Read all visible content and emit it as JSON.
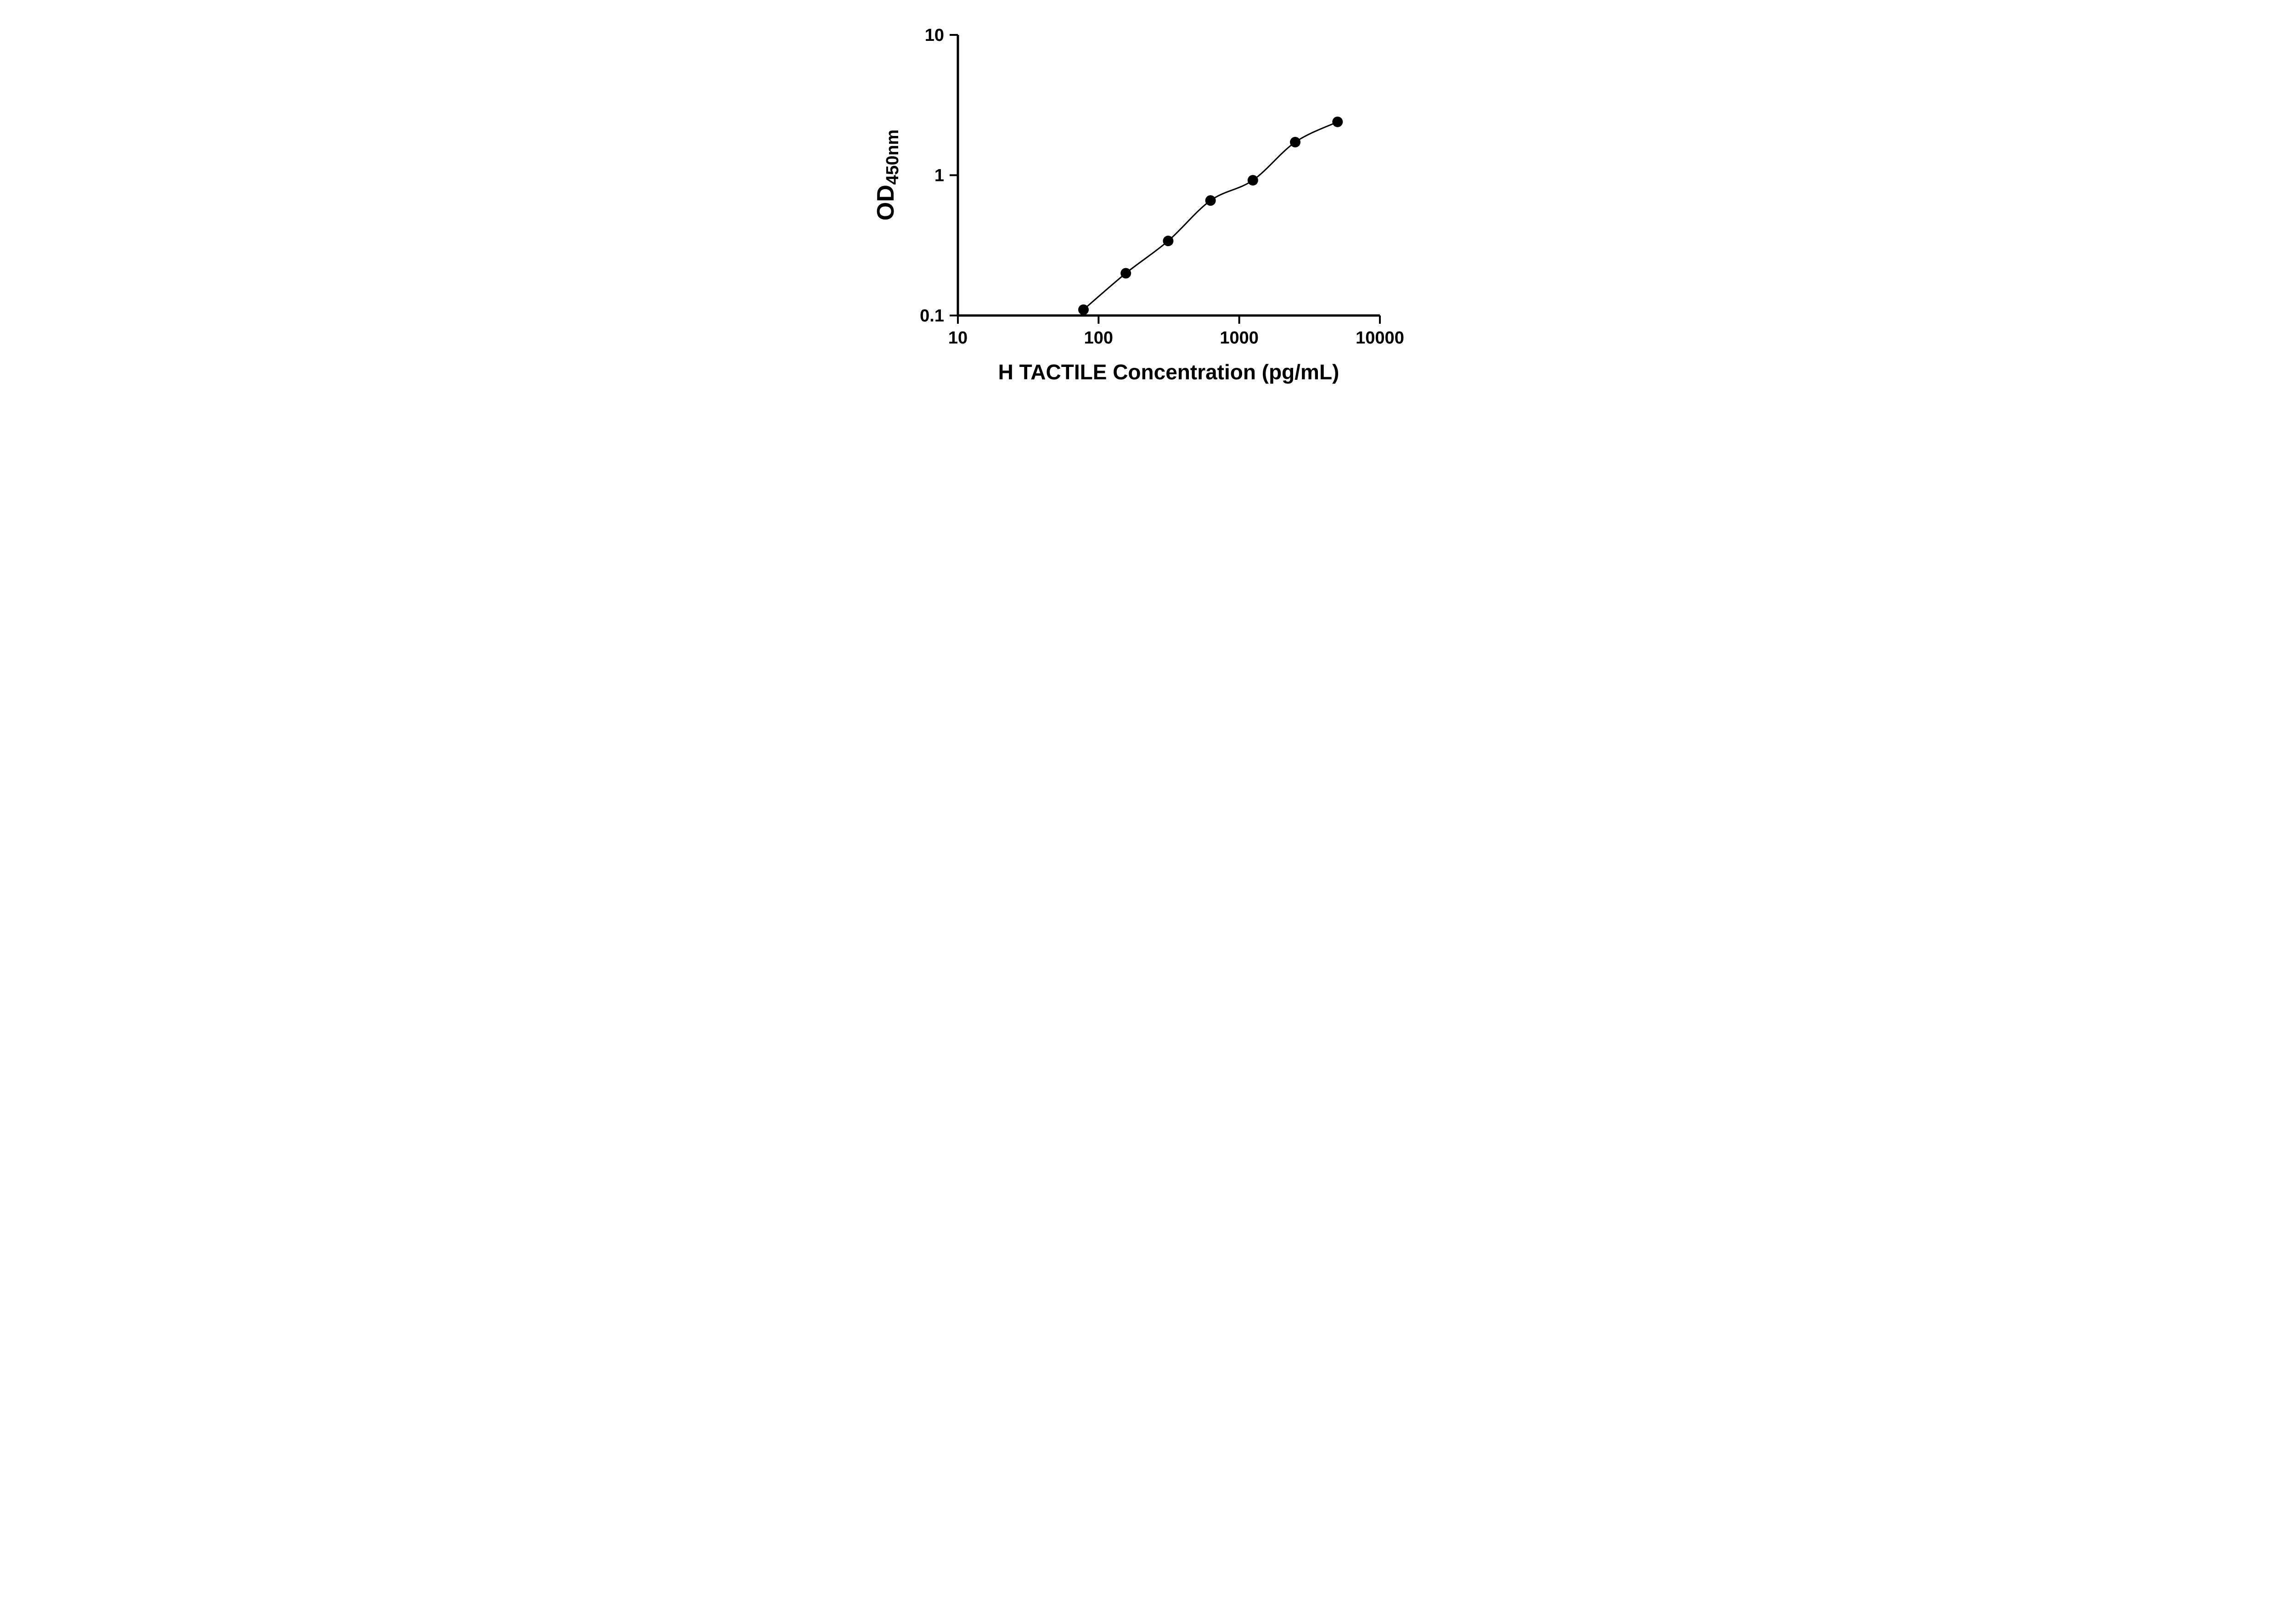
{
  "chart_data": {
    "type": "scatter",
    "title": "",
    "xlabel": "H TACTILE Concentration (pg/mL)",
    "ylabel": "OD450nm",
    "ylabel_main": "OD",
    "ylabel_sub": "450nm",
    "x_scale": "log",
    "y_scale": "log",
    "xlim": [
      10,
      10000
    ],
    "ylim": [
      0.1,
      10
    ],
    "x_ticks": [
      10,
      100,
      1000,
      10000
    ],
    "x_tick_labels": [
      "10",
      "100",
      "1000",
      "10000"
    ],
    "y_ticks": [
      10,
      1,
      0.1
    ],
    "y_tick_labels": [
      "10",
      "1",
      "0.1"
    ],
    "grid": "off",
    "legend": "none",
    "points": [
      {
        "x": 78.125,
        "y": 0.11
      },
      {
        "x": 156.25,
        "y": 0.2
      },
      {
        "x": 312.5,
        "y": 0.34
      },
      {
        "x": 625,
        "y": 0.66
      },
      {
        "x": 1250,
        "y": 0.92
      },
      {
        "x": 2500,
        "y": 1.72
      },
      {
        "x": 5000,
        "y": 2.4
      }
    ],
    "curve": "smooth 4PL standard-curve fit through points",
    "marker_color": "#000000",
    "line_color": "#000000",
    "axis_color": "#000000",
    "background": "#ffffff"
  }
}
